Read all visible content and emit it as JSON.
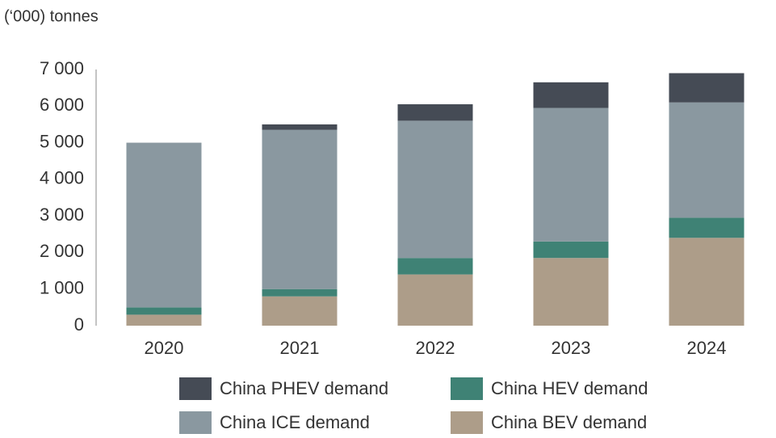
{
  "chart_data": {
    "type": "stacked_bar",
    "unit_label": "(‘000) tonnes",
    "categories": [
      "2020",
      "2021",
      "2022",
      "2023",
      "2024"
    ],
    "series": [
      {
        "name": "China BEV demand",
        "color": "#ad9d89",
        "values": [
          300,
          800,
          1400,
          1850,
          2400
        ]
      },
      {
        "name": "China HEV demand",
        "color": "#3f8275",
        "values": [
          200,
          200,
          450,
          450,
          550
        ]
      },
      {
        "name": "China ICE demand",
        "color": "#8a98a0",
        "values": [
          4500,
          4350,
          3750,
          3650,
          3150
        ]
      },
      {
        "name": "China PHEV demand",
        "color": "#454b55",
        "values": [
          0,
          150,
          450,
          700,
          800
        ]
      }
    ],
    "ylim": [
      0,
      7000
    ],
    "yticks": [
      0,
      {
        "value": 1000,
        "label": "1 000"
      },
      {
        "value": 2000,
        "label": "2 000"
      },
      {
        "value": 3000,
        "label": "3 000"
      },
      {
        "value": 4000,
        "label": "4 000"
      },
      {
        "value": 5000,
        "label": "5 000"
      },
      {
        "value": 6000,
        "label": "6 000"
      },
      {
        "value": 7000,
        "label": "7 000"
      }
    ],
    "grid": false
  }
}
